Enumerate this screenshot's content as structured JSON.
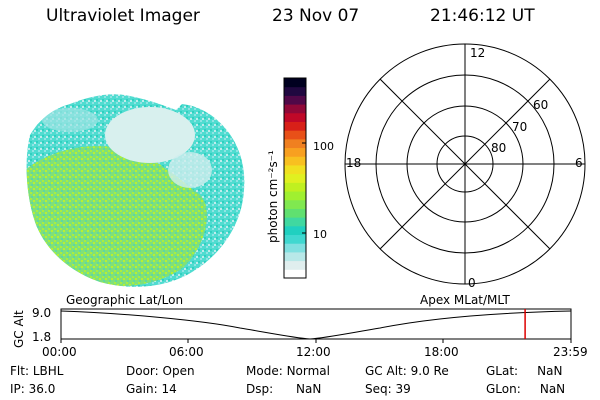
{
  "header": {
    "instrument": "Ultraviolet Imager",
    "date": "23 Nov 07",
    "time": "21:46:12 UT"
  },
  "colorbar": {
    "label": "photon cm⁻²s⁻¹",
    "ticks": [
      "100",
      "10"
    ],
    "colors": [
      "#ffffff",
      "#e0eeee",
      "#b8e8e8",
      "#80e0e0",
      "#40d8d0",
      "#20d0c0",
      "#40d8a0",
      "#60e070",
      "#80e850",
      "#a0f030",
      "#c0f020",
      "#e0f020",
      "#f0e020",
      "#f8c020",
      "#f8a020",
      "#f08020",
      "#e85018",
      "#d82018",
      "#c00828",
      "#900838",
      "#500848",
      "#200840",
      "#000020"
    ]
  },
  "polar": {
    "hour_labels": [
      "12",
      "18",
      "6",
      "0"
    ],
    "lat_labels": [
      "60",
      "70",
      "80"
    ]
  },
  "timeline": {
    "left_title": "Geographic Lat/Lon",
    "right_title": "Apex MLat/MLT",
    "axis_label": "GC Alt",
    "y_ticks": [
      "9.0",
      "1.8"
    ],
    "x_ticks": [
      "00:00",
      "06:00",
      "12:00",
      "18:00",
      "23:59"
    ],
    "current_time_fraction": 0.91,
    "marker_color": "#dd0000"
  },
  "info": {
    "row1": [
      {
        "label": "Flt:",
        "value": "LBHL"
      },
      {
        "label": "Door:",
        "value": "Open"
      },
      {
        "label": "Mode:",
        "value": "Normal"
      },
      {
        "label": "GC Alt:",
        "value": "9.0 Re"
      },
      {
        "label": "GLat:",
        "value": "NaN"
      }
    ],
    "row2": [
      {
        "label": "IP:",
        "value": "36.0"
      },
      {
        "label": "Gain:",
        "value": "14"
      },
      {
        "label": "Dsp:",
        "value": "NaN"
      },
      {
        "label": "Seq:",
        "value": "39"
      },
      {
        "label": "GLon:",
        "value": "NaN"
      }
    ]
  }
}
